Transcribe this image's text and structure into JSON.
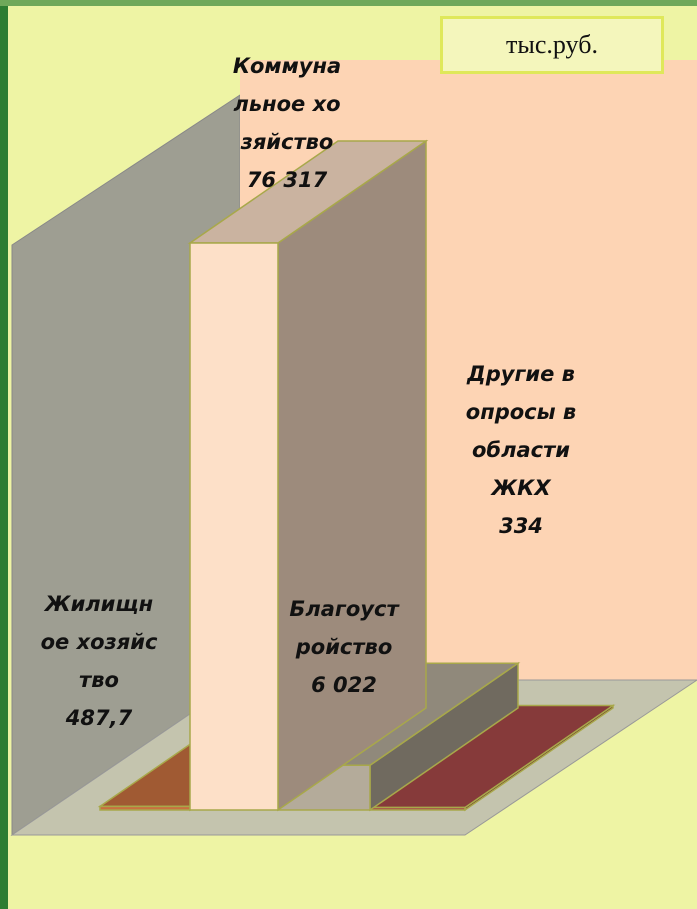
{
  "unit": "тыс.руб.",
  "chart_data": {
    "type": "bar3d",
    "categories": [
      "Жилищное хозяйство",
      "Коммунальное хозяйство",
      "Благоустройство",
      "Другие вопросы в области ЖКХ"
    ],
    "values": [
      487.7,
      76317,
      6022,
      334
    ],
    "value_labels": [
      "487,7",
      "76 317",
      "6 022",
      "334"
    ],
    "colors": [
      "#c87040",
      "#fde0c8",
      "#b4ab9a",
      "#a84848"
    ]
  }
}
